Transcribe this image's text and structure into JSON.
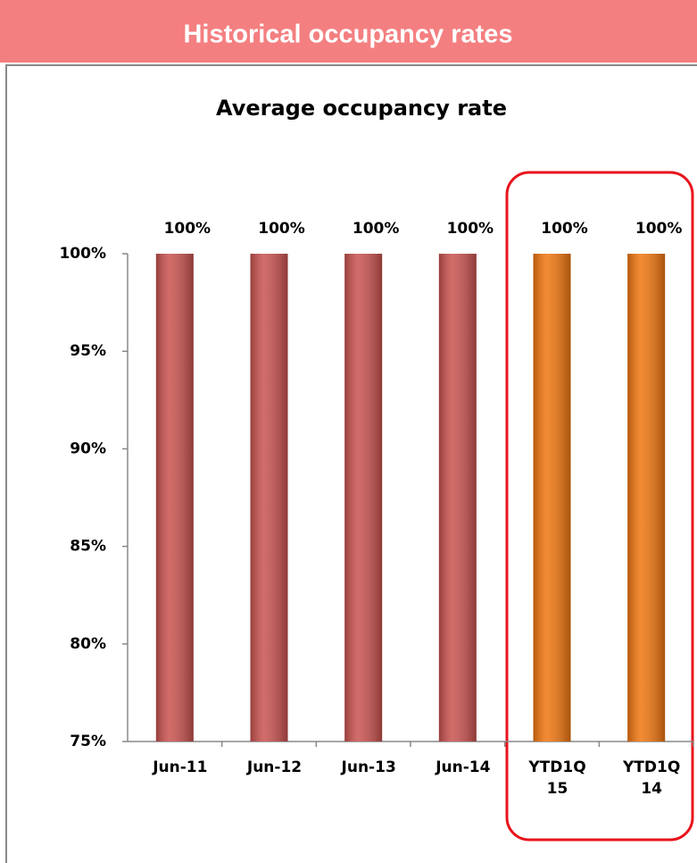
{
  "header": {
    "title": "Historical occupancy rates"
  },
  "chart_data": {
    "type": "bar",
    "title": "Average occupancy rate",
    "categories": [
      "Jun-11",
      "Jun-12",
      "Jun-13",
      "Jun-14",
      "YTD1Q 15",
      "YTD1Q 14"
    ],
    "values": [
      100,
      100,
      100,
      100,
      100,
      100
    ],
    "value_labels": [
      "100%",
      "100%",
      "100%",
      "100%",
      "100%",
      "100%"
    ],
    "colors": [
      "#c9524f",
      "#c9524f",
      "#c9524f",
      "#c9524f",
      "#f0760f",
      "#f0760f"
    ],
    "ylim": [
      75,
      100
    ],
    "yticks": [
      {
        "value": 75,
        "label": "75%"
      },
      {
        "value": 80,
        "label": "80%"
      },
      {
        "value": 85,
        "label": "85%"
      },
      {
        "value": 90,
        "label": "90%"
      },
      {
        "value": 95,
        "label": "95%"
      },
      {
        "value": 100,
        "label": "100%"
      }
    ],
    "grid": false
  }
}
